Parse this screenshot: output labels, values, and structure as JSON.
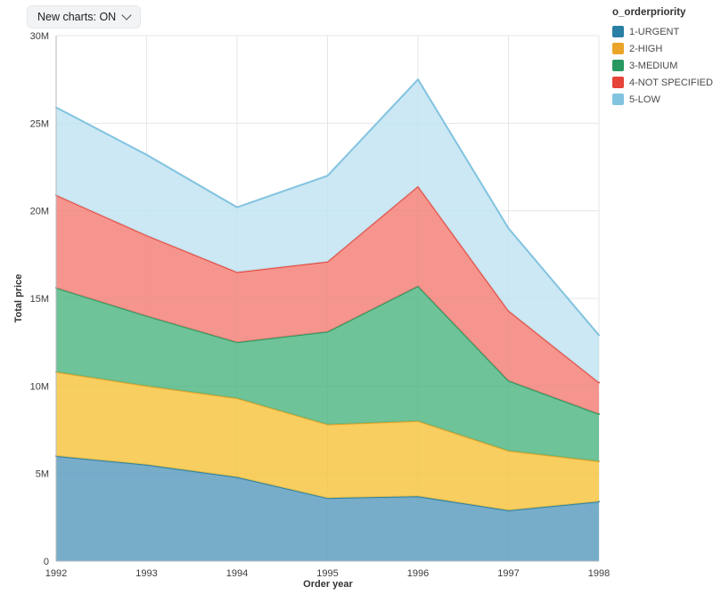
{
  "toggle": {
    "label": "New charts: ON"
  },
  "legend": {
    "title": "o_orderpriority"
  },
  "chart_data": {
    "type": "area",
    "stacked": true,
    "title": "",
    "xlabel": "Order year",
    "ylabel": "Total price",
    "x": [
      1992,
      1993,
      1994,
      1995,
      1996,
      1997,
      1998
    ],
    "ylim": [
      0,
      30
    ],
    "y_unit": "M",
    "yticks": [
      "0",
      "5M",
      "10M",
      "15M",
      "20M",
      "25M",
      "30M"
    ],
    "grid": true,
    "legend_position": "right",
    "series": [
      {
        "name": "1-URGENT",
        "values": [
          6.0,
          5.5,
          4.8,
          3.6,
          3.7,
          2.9,
          3.4
        ],
        "stroke": "#2a7fa5",
        "fill": "#5f9fc0"
      },
      {
        "name": "2-HIGH",
        "values": [
          4.8,
          4.5,
          4.5,
          4.2,
          4.3,
          3.4,
          2.3
        ],
        "stroke": "#eaa42a",
        "fill": "#f6c643"
      },
      {
        "name": "3-MEDIUM",
        "values": [
          4.8,
          4.0,
          3.2,
          5.3,
          7.7,
          4.0,
          2.7
        ],
        "stroke": "#27985f",
        "fill": "#55b886"
      },
      {
        "name": "4-NOT SPECIFIED",
        "values": [
          5.3,
          4.6,
          4.0,
          4.0,
          5.7,
          4.0,
          1.8
        ],
        "stroke": "#e64438",
        "fill": "#f3837a"
      },
      {
        "name": "5-LOW",
        "values": [
          5.0,
          4.6,
          3.7,
          4.9,
          6.1,
          4.7,
          2.7
        ],
        "stroke": "#82c3e0",
        "fill": "#c2e4f2"
      }
    ]
  }
}
